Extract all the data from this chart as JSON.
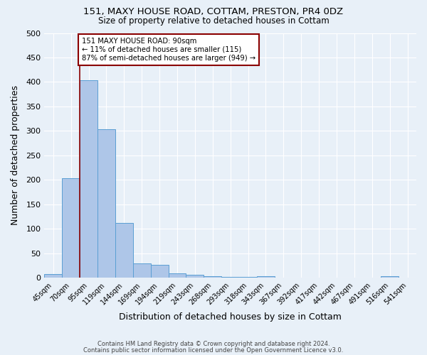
{
  "title1": "151, MAXY HOUSE ROAD, COTTAM, PRESTON, PR4 0DZ",
  "title2": "Size of property relative to detached houses in Cottam",
  "xlabel": "Distribution of detached houses by size in Cottam",
  "ylabel": "Number of detached properties",
  "footnote1": "Contains HM Land Registry data © Crown copyright and database right 2024.",
  "footnote2": "Contains public sector information licensed under the Open Government Licence v3.0.",
  "bar_labels": [
    "45sqm",
    "70sqm",
    "95sqm",
    "119sqm",
    "144sqm",
    "169sqm",
    "194sqm",
    "219sqm",
    "243sqm",
    "268sqm",
    "293sqm",
    "318sqm",
    "343sqm",
    "367sqm",
    "392sqm",
    "417sqm",
    "442sqm",
    "467sqm",
    "491sqm",
    "516sqm",
    "541sqm"
  ],
  "bar_values": [
    8,
    203,
    403,
    303,
    113,
    30,
    27,
    9,
    7,
    4,
    2,
    2,
    3,
    0,
    0,
    0,
    0,
    0,
    0,
    4,
    0
  ],
  "bar_color": "#aec6e8",
  "bar_edge_color": "#5a9fd4",
  "subject_line_color": "#8b0000",
  "annotation_line1": "151 MAXY HOUSE ROAD: 90sqm",
  "annotation_line2": "← 11% of detached houses are smaller (115)",
  "annotation_line3": "87% of semi-detached houses are larger (949) →",
  "annotation_box_color": "#8b0000",
  "annotation_box_fill": "#ffffff",
  "ylim": [
    0,
    500
  ],
  "yticks": [
    0,
    50,
    100,
    150,
    200,
    250,
    300,
    350,
    400,
    450,
    500
  ],
  "bg_color": "#e8f0f8",
  "plot_bg_color": "#e8f0f8",
  "grid_color": "#ffffff"
}
